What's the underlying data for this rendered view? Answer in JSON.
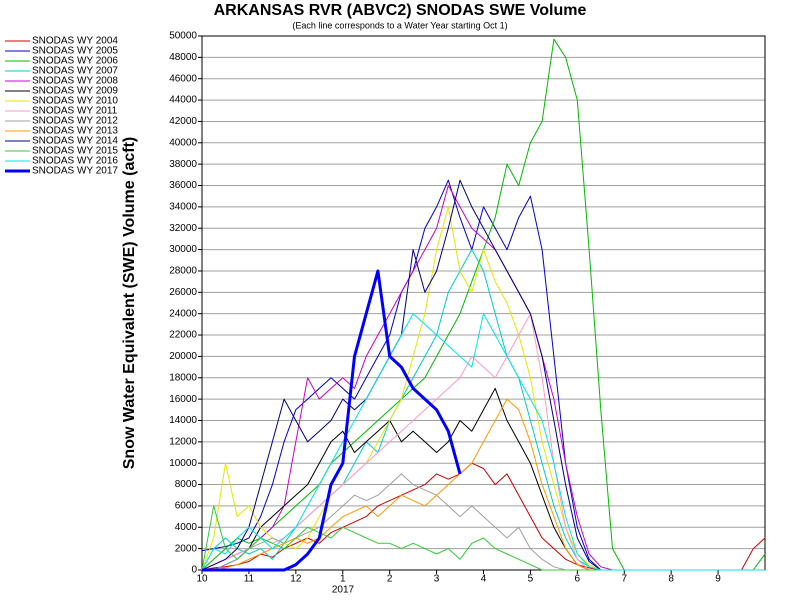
{
  "chart_data": {
    "type": "line",
    "title": "ARKANSAS RVR (ABVC2) SNODAS SWE Volume",
    "subtitle": "(Each line corresponds to a Water Year starting Oct 1)",
    "y_label": "Snow Water Equivalent (SWE) Volume (acft)",
    "annotation": "2017",
    "grid": true,
    "legend": "top-left",
    "xlim": [
      0,
      12
    ],
    "xticks": [
      {
        "value": 0,
        "label": "10"
      },
      {
        "value": 1,
        "label": "11"
      },
      {
        "value": 2,
        "label": "12"
      },
      {
        "value": 3,
        "label": "1"
      },
      {
        "value": 4,
        "label": "2"
      },
      {
        "value": 5,
        "label": "3"
      },
      {
        "value": 6,
        "label": "4"
      },
      {
        "value": 7,
        "label": "5"
      },
      {
        "value": 8,
        "label": "6"
      },
      {
        "value": 9,
        "label": "7"
      },
      {
        "value": 10,
        "label": "8"
      },
      {
        "value": 11,
        "label": "9"
      }
    ],
    "ylim": [
      0,
      50000
    ],
    "yticks": [
      0,
      2000,
      4000,
      6000,
      8000,
      10000,
      12000,
      14000,
      16000,
      18000,
      20000,
      22000,
      24000,
      26000,
      28000,
      30000,
      32000,
      34000,
      36000,
      38000,
      40000,
      42000,
      44000,
      46000,
      48000,
      50000
    ],
    "x": [
      0,
      0.25,
      0.5,
      0.75,
      1,
      1.25,
      1.5,
      1.75,
      2,
      2.25,
      2.5,
      2.75,
      3,
      3.25,
      3.5,
      3.75,
      4,
      4.25,
      4.5,
      4.75,
      5,
      5.25,
      5.5,
      5.75,
      6,
      6.25,
      6.5,
      6.75,
      7,
      7.25,
      7.5,
      7.75,
      8,
      8.25,
      8.5,
      8.75,
      9,
      9.25,
      9.5,
      9.75,
      10,
      10.25,
      10.5,
      10.75,
      11,
      11.25,
      11.5,
      11.75,
      12
    ],
    "series": [
      {
        "name": "SNODAS WY 2004",
        "color": "#cc0000",
        "width": 1,
        "values": [
          0,
          200,
          300,
          500,
          800,
          1500,
          1200,
          2000,
          2500,
          3000,
          2500,
          3500,
          4000,
          4500,
          5000,
          6000,
          6500,
          7000,
          7500,
          8000,
          9000,
          8500,
          9000,
          10000,
          9500,
          8000,
          9000,
          7000,
          5000,
          3000,
          2000,
          1000,
          500,
          200,
          0,
          0,
          0,
          0,
          0,
          0,
          0,
          0,
          0,
          0,
          0,
          0,
          0,
          2000,
          3000
        ]
      },
      {
        "name": "SNODAS WY 2005",
        "color": "#0000cc",
        "width": 1,
        "values": [
          1800,
          2000,
          2200,
          2500,
          3000,
          5000,
          8000,
          12000,
          15000,
          16000,
          17000,
          18000,
          17000,
          16000,
          18000,
          20000,
          22000,
          26000,
          28000,
          32000,
          34000,
          36500,
          33000,
          30000,
          34000,
          32000,
          30000,
          33000,
          35000,
          30000,
          20000,
          10000,
          4000,
          1000,
          0,
          0,
          0,
          0,
          0,
          0,
          0,
          0,
          0,
          0,
          0,
          0,
          0,
          0,
          0
        ]
      },
      {
        "name": "SNODAS WY 2006",
        "color": "#00bb00",
        "width": 1,
        "values": [
          0,
          1000,
          2000,
          3000,
          2500,
          3000,
          4000,
          5000,
          6000,
          7000,
          8000,
          10000,
          11000,
          12000,
          13000,
          14000,
          15000,
          16000,
          17000,
          18000,
          20000,
          22000,
          24000,
          27000,
          30000,
          33000,
          38000,
          36000,
          40000,
          42000,
          49700,
          48000,
          44000,
          30000,
          15000,
          2000,
          0,
          0,
          0,
          0,
          0,
          0,
          0,
          0,
          0,
          0,
          0,
          0,
          1500
        ]
      },
      {
        "name": "SNODAS WY 2007",
        "color": "#00cccc",
        "width": 1,
        "values": [
          0,
          2000,
          3000,
          2000,
          1500,
          2000,
          1000,
          2500,
          4000,
          5000,
          6000,
          7000,
          8000,
          10000,
          12000,
          11000,
          14000,
          16000,
          18000,
          20000,
          22000,
          26000,
          28000,
          30000,
          28000,
          24000,
          20000,
          18000,
          14000,
          10000,
          6000,
          3000,
          1000,
          300,
          0,
          0,
          0,
          0,
          0,
          0,
          0,
          0,
          0,
          0,
          0,
          0,
          0,
          0,
          0
        ]
      },
      {
        "name": "SNODAS WY 2008",
        "color": "#cc00cc",
        "width": 1,
        "values": [
          0,
          500,
          1000,
          1500,
          2000,
          3000,
          4000,
          6000,
          12000,
          18000,
          16000,
          17000,
          18000,
          17000,
          20000,
          22000,
          24000,
          26000,
          28000,
          30000,
          32000,
          36000,
          34000,
          32000,
          31000,
          30000,
          28000,
          26000,
          24000,
          20000,
          16000,
          10000,
          5000,
          1500,
          300,
          0,
          0,
          0,
          0,
          0,
          0,
          0,
          0,
          0,
          0,
          0,
          0,
          0,
          0
        ]
      },
      {
        "name": "SNODAS WY 2009",
        "color": "#000000",
        "width": 1,
        "values": [
          0,
          0,
          500,
          1000,
          2000,
          4000,
          5000,
          6000,
          7000,
          8000,
          10000,
          12000,
          13000,
          11000,
          12000,
          13000,
          14000,
          12000,
          13000,
          12000,
          11000,
          12000,
          14000,
          13000,
          15000,
          17000,
          14000,
          12000,
          10000,
          7000,
          4000,
          2000,
          500,
          0,
          0,
          0,
          0,
          0,
          0,
          0,
          0,
          0,
          0,
          0,
          0,
          0,
          0,
          0,
          0
        ]
      },
      {
        "name": "SNODAS WY 2010",
        "color": "#e6e600",
        "width": 1,
        "values": [
          0,
          3000,
          10000,
          5000,
          6000,
          4000,
          3000,
          2500,
          2000,
          3000,
          5000,
          7000,
          8000,
          9000,
          10000,
          12000,
          14000,
          16000,
          20000,
          24000,
          30000,
          34000,
          28000,
          26000,
          30000,
          27000,
          25000,
          22000,
          18000,
          12000,
          8000,
          4000,
          1500,
          500,
          0,
          0,
          0,
          0,
          0,
          0,
          0,
          0,
          0,
          0,
          0,
          0,
          0,
          0,
          0
        ]
      },
      {
        "name": "SNODAS WY 2011",
        "color": "#ff99cc",
        "width": 1,
        "values": [
          0,
          500,
          1000,
          1500,
          2000,
          3000,
          2500,
          3000,
          4000,
          5000,
          6000,
          7000,
          8000,
          9000,
          10000,
          11000,
          12000,
          13000,
          14000,
          15000,
          16000,
          17000,
          18000,
          20000,
          19000,
          18000,
          20000,
          22000,
          24000,
          18000,
          10000,
          4000,
          1000,
          0,
          0,
          0,
          0,
          0,
          0,
          0,
          0,
          0,
          0,
          0,
          0,
          0,
          0,
          0,
          0
        ]
      },
      {
        "name": "SNODAS WY 2012",
        "color": "#a0a0a0",
        "width": 1,
        "values": [
          0,
          0,
          500,
          1000,
          2000,
          2500,
          3000,
          2500,
          3000,
          3500,
          4000,
          5000,
          6000,
          7000,
          6500,
          7000,
          8000,
          9000,
          8000,
          7500,
          7000,
          6000,
          5000,
          6000,
          5000,
          4000,
          3000,
          4000,
          2000,
          1000,
          300,
          0,
          0,
          0,
          0,
          0,
          0,
          0,
          0,
          0,
          0,
          0,
          0,
          0,
          0,
          0,
          0,
          0,
          0
        ]
      },
      {
        "name": "SNODAS WY 2013",
        "color": "#ff9900",
        "width": 1,
        "values": [
          0,
          0,
          200,
          500,
          1000,
          1500,
          2000,
          2500,
          3000,
          2500,
          3000,
          4000,
          5000,
          5500,
          6000,
          5000,
          6000,
          7000,
          6500,
          6000,
          7000,
          8000,
          9000,
          10000,
          12000,
          14000,
          16000,
          15000,
          12000,
          8000,
          5000,
          2000,
          500,
          0,
          0,
          0,
          0,
          0,
          0,
          0,
          0,
          0,
          0,
          0,
          0,
          0,
          0,
          0,
          0
        ]
      },
      {
        "name": "SNODAS WY 2014",
        "color": "#000080",
        "width": 1,
        "values": [
          0,
          500,
          1000,
          2000,
          4000,
          8000,
          12000,
          16000,
          14000,
          12000,
          13000,
          14000,
          16000,
          15000,
          16000,
          18000,
          20000,
          22000,
          30000,
          26000,
          28000,
          32000,
          36500,
          34000,
          32000,
          30000,
          28000,
          26000,
          24000,
          20000,
          14000,
          8000,
          3000,
          800,
          0,
          0,
          0,
          0,
          0,
          0,
          0,
          0,
          0,
          0,
          0,
          0,
          0,
          0,
          0
        ]
      },
      {
        "name": "SNODAS WY 2015",
        "color": "#33cc33",
        "width": 1,
        "values": [
          0,
          6000,
          2000,
          1000,
          2000,
          3000,
          2500,
          2000,
          3000,
          4000,
          3500,
          3000,
          4000,
          3500,
          3000,
          2500,
          2500,
          2000,
          2500,
          2000,
          1500,
          2000,
          1000,
          2500,
          3000,
          2000,
          1500,
          1000,
          500,
          0,
          0,
          0,
          0,
          0,
          0,
          0,
          0,
          0,
          0,
          0,
          0,
          0,
          0,
          0,
          0,
          0,
          0,
          0,
          0
        ]
      },
      {
        "name": "SNODAS WY 2016",
        "color": "#00e5ee",
        "width": 1,
        "values": [
          0,
          2000,
          1500,
          3000,
          4000,
          3000,
          2000,
          3000,
          4000,
          6000,
          8000,
          10000,
          12000,
          14000,
          16000,
          18000,
          20000,
          22000,
          24000,
          23000,
          22000,
          21000,
          20000,
          19000,
          24000,
          22000,
          20000,
          18000,
          16000,
          14000,
          10000,
          5000,
          1500,
          300,
          0,
          0,
          0,
          0,
          0,
          0,
          0,
          0,
          0,
          0,
          0,
          0,
          0,
          0,
          0
        ]
      },
      {
        "name": "SNODAS WY 2017",
        "color": "#0000ff",
        "width": 3,
        "values": [
          0,
          0,
          0,
          0,
          0,
          0,
          0,
          0,
          500,
          1500,
          3000,
          8000,
          10000,
          20000,
          24000,
          28000,
          20000,
          19000,
          17000,
          16000,
          15000,
          13000,
          9000,
          null,
          null,
          null,
          null,
          null,
          null,
          null,
          null,
          null,
          null,
          null,
          null,
          null,
          null,
          null,
          null,
          null,
          null,
          null,
          null,
          null,
          null,
          null,
          null,
          null,
          null
        ]
      }
    ]
  }
}
